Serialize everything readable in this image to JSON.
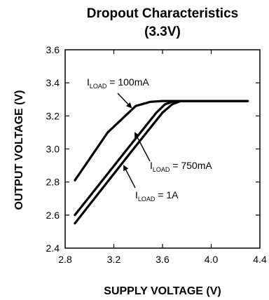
{
  "chart_data": {
    "type": "line",
    "title": "Dropout Characteristics",
    "subtitle": "(3.3V)",
    "xlabel": "SUPPLY VOLTAGE (V)",
    "ylabel": "OUTPUT VOLTAGE (V)",
    "xlim": [
      2.8,
      4.4
    ],
    "ylim": [
      2.4,
      3.6
    ],
    "x_ticks": [
      "2.8",
      "3.2",
      "3.6",
      "4.0",
      "4.4"
    ],
    "y_ticks": [
      "2.4",
      "2.6",
      "2.8",
      "3.0",
      "3.2",
      "3.4",
      "3.6"
    ],
    "grid": false,
    "series": [
      {
        "name": "100mA",
        "points": [
          [
            2.88,
            2.81
          ],
          [
            3.15,
            3.1
          ],
          [
            3.38,
            3.26
          ],
          [
            3.5,
            3.285
          ],
          [
            3.6,
            3.29
          ],
          [
            4.3,
            3.29
          ]
        ]
      },
      {
        "name": "750mA",
        "points": [
          [
            2.88,
            2.6
          ],
          [
            3.3,
            2.99
          ],
          [
            3.55,
            3.22
          ],
          [
            3.62,
            3.27
          ],
          [
            3.7,
            3.29
          ],
          [
            4.3,
            3.29
          ]
        ]
      },
      {
        "name": "1A",
        "points": [
          [
            2.88,
            2.55
          ],
          [
            3.35,
            2.99
          ],
          [
            3.6,
            3.22
          ],
          [
            3.68,
            3.27
          ],
          [
            3.75,
            3.29
          ],
          [
            4.3,
            3.29
          ]
        ]
      }
    ],
    "annotations": [
      {
        "prefix": "I",
        "sub": "LOAD",
        "text": " = 100mA"
      },
      {
        "prefix": "I",
        "sub": "LOAD",
        "text": " = 750mA"
      },
      {
        "prefix": "I",
        "sub": "LOAD",
        "text": " = 1A"
      }
    ]
  }
}
